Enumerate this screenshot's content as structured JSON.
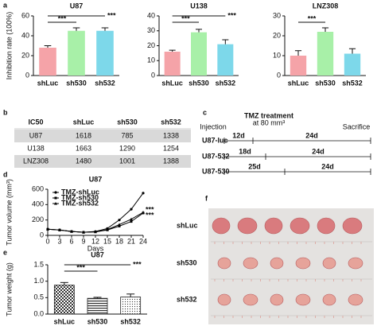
{
  "panel_labels": [
    "a",
    "b",
    "c",
    "d",
    "e",
    "f"
  ],
  "chart_data": [
    {
      "type": "bar",
      "title": "U87",
      "ylabel": "Inhibition rate (100%)",
      "categories": [
        "shLuc",
        "sh530",
        "sh532"
      ],
      "values": [
        28,
        45,
        45
      ],
      "errors": [
        2,
        3,
        3
      ],
      "colors": [
        "#f5a3a8",
        "#a8f0a8",
        "#7dd8ea"
      ],
      "ylim": [
        0,
        60
      ],
      "yticks": [
        0,
        20,
        40,
        60
      ],
      "annotations": [
        "***",
        "***"
      ]
    },
    {
      "type": "bar",
      "title": "U138",
      "categories": [
        "shLuc",
        "sh530",
        "sh532"
      ],
      "values": [
        16,
        29,
        21
      ],
      "errors": [
        1,
        2,
        3
      ],
      "colors": [
        "#f5a3a8",
        "#a8f0a8",
        "#7dd8ea"
      ],
      "ylim": [
        0,
        40
      ],
      "yticks": [
        0,
        10,
        20,
        30,
        40
      ],
      "annotations": [
        "***",
        "***"
      ]
    },
    {
      "type": "bar",
      "title": "LNZ308",
      "categories": [
        "shLuc",
        "sh530",
        "sh532"
      ],
      "values": [
        10,
        22,
        11
      ],
      "errors": [
        2.5,
        2,
        2.5
      ],
      "colors": [
        "#f5a3a8",
        "#a8f0a8",
        "#7dd8ea"
      ],
      "ylim": [
        0,
        30
      ],
      "yticks": [
        0,
        10,
        20,
        30
      ],
      "annotations": [
        "***"
      ]
    },
    {
      "type": "line",
      "title": "U87",
      "ylabel": "Tumor volume (mm³)",
      "xlabel": "Days",
      "x": [
        0,
        3,
        6,
        9,
        12,
        15,
        18,
        21,
        24
      ],
      "series": [
        {
          "name": "TMZ-shLuc",
          "color": "#000000",
          "values": [
            80,
            70,
            50,
            40,
            50,
            90,
            200,
            340,
            550
          ]
        },
        {
          "name": "TMZ-sh530",
          "color": "#000000",
          "values": [
            80,
            70,
            50,
            40,
            45,
            70,
            120,
            180,
            290
          ]
        },
        {
          "name": "TMZ-sh532",
          "color": "#000000",
          "values": [
            80,
            70,
            50,
            40,
            45,
            75,
            140,
            210,
            300
          ]
        }
      ],
      "xlim": [
        0,
        24
      ],
      "xticks": [
        0,
        3,
        6,
        9,
        12,
        15,
        18,
        21,
        24
      ],
      "ylim": [
        0,
        600
      ],
      "yticks": [
        0,
        200,
        400,
        600
      ],
      "legend": "upper-left",
      "annotations": [
        "***",
        "***"
      ]
    },
    {
      "type": "bar",
      "title": "U87",
      "ylabel": "Tumor weight (g)",
      "categories": [
        "shLuc",
        "sh530",
        "sh532"
      ],
      "values": [
        0.88,
        0.48,
        0.52
      ],
      "errors": [
        0.08,
        0.03,
        0.09
      ],
      "patterns": [
        "checker",
        "hlines",
        "dots"
      ],
      "ylim": [
        0,
        1.5
      ],
      "yticks": [
        {
          "value": 0,
          "label": "0.0"
        },
        {
          "value": 0.5,
          "label": "0.5"
        },
        {
          "value": 1,
          "label": "1.0"
        },
        {
          "value": 1.5,
          "label": "1.5"
        }
      ],
      "annotations": [
        "***",
        "***"
      ]
    }
  ],
  "table": {
    "header": [
      "IC50",
      "shLuc",
      "sh530",
      "sh532"
    ],
    "rows": [
      [
        "U87",
        "1618",
        "785",
        "1338"
      ],
      [
        "U138",
        "1663",
        "1290",
        "1254"
      ],
      [
        "LNZ308",
        "1480",
        "1001",
        "1388"
      ]
    ]
  },
  "timeline": {
    "treatment": "TMZ treatment",
    "treatment_size": "at 80 mm³",
    "start": "Injection",
    "end": "Sacrifice",
    "rows": [
      {
        "name": "U87-luc",
        "segments": [
          "12d",
          "24d"
        ]
      },
      {
        "name": "U87-532",
        "segments": [
          "18d",
          "24d"
        ]
      },
      {
        "name": "U87-530",
        "segments": [
          "25d",
          "24d"
        ]
      }
    ]
  },
  "photo": {
    "rows": [
      "shLuc",
      "sh530",
      "sh532"
    ]
  }
}
